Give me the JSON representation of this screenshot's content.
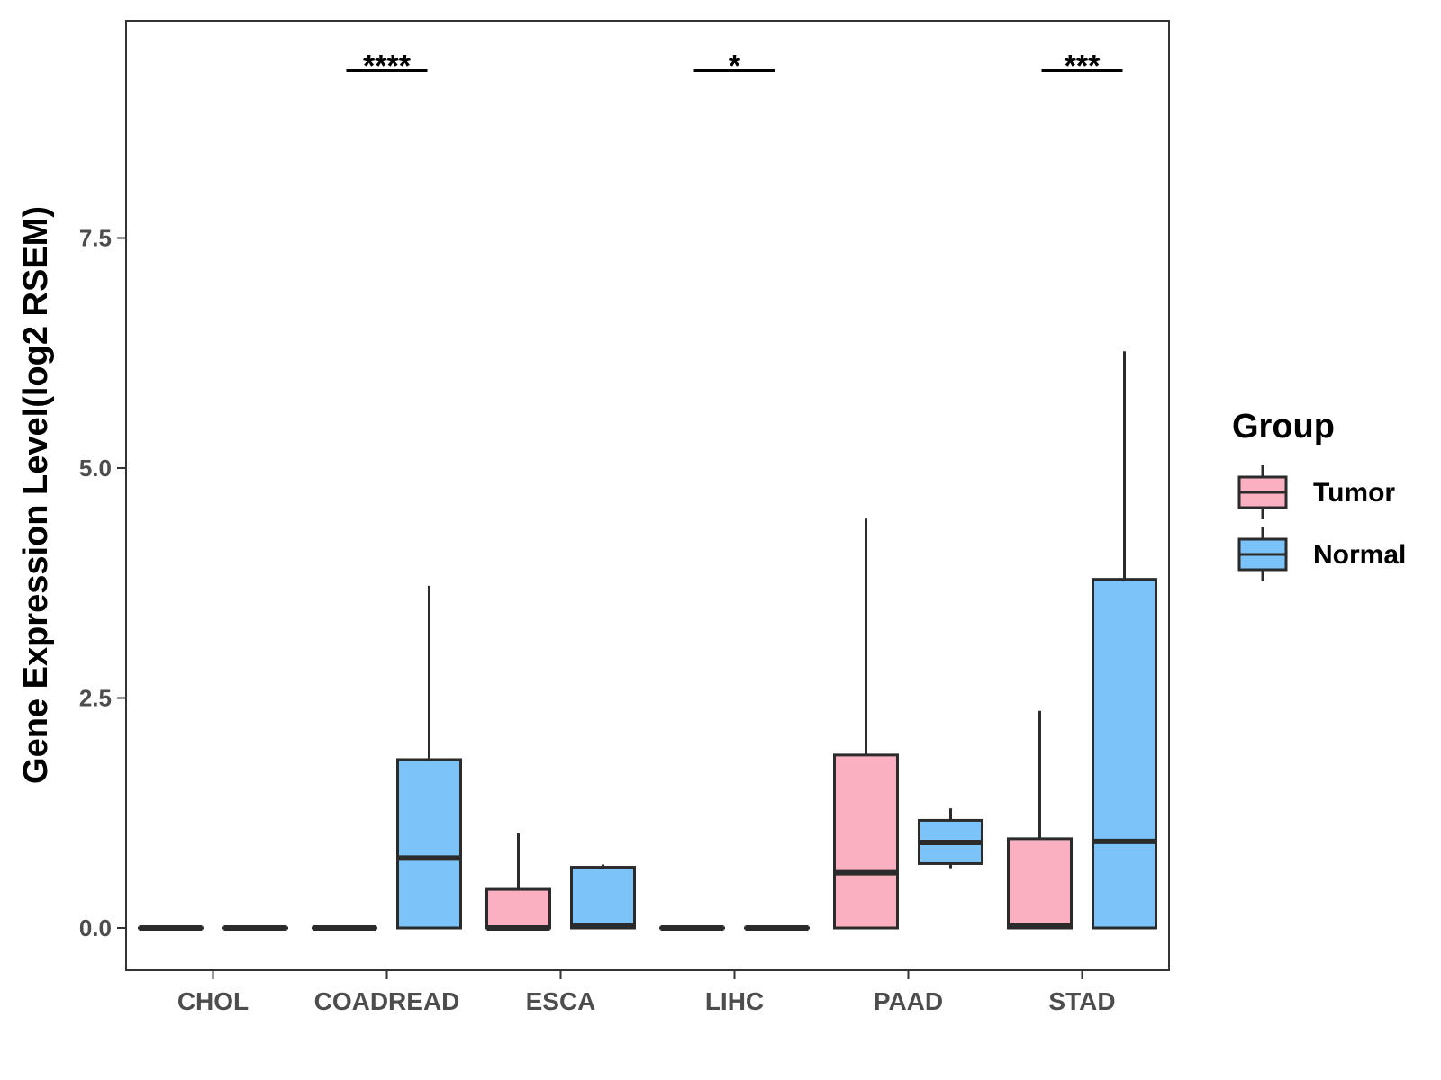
{
  "chart_data": {
    "type": "boxplot",
    "ylabel": "Gene Expression Level(log2 RSEM)",
    "xlabel": "",
    "ylim": [
      -0.45,
      9.85
    ],
    "yticks": [
      0.0,
      2.5,
      5.0,
      7.5
    ],
    "ytick_labels": [
      "0.0",
      "2.5",
      "5.0",
      "7.5"
    ],
    "categories": [
      "CHOL",
      "COADREAD",
      "ESCA",
      "LIHC",
      "PAAD",
      "STAD"
    ],
    "legend": {
      "title": "Group",
      "position": "right",
      "entries": [
        {
          "name": "Tumor",
          "color": "#FBB0C2"
        },
        {
          "name": "Normal",
          "color": "#7BC3F8"
        }
      ]
    },
    "series": [
      {
        "name": "Tumor",
        "color": "#FBB0C2",
        "boxes": [
          {
            "category": "CHOL",
            "min": 0.0,
            "q1": 0.0,
            "median": 0.0,
            "q3": 0.0,
            "max": 0.0
          },
          {
            "category": "COADREAD",
            "min": 0.0,
            "q1": 0.0,
            "median": 0.0,
            "q3": 0.0,
            "max": 0.0
          },
          {
            "category": "ESCA",
            "min": 0.0,
            "q1": 0.0,
            "median": 0.0,
            "q3": 0.42,
            "max": 1.03
          },
          {
            "category": "LIHC",
            "min": 0.0,
            "q1": 0.0,
            "median": 0.0,
            "q3": 0.0,
            "max": 0.0
          },
          {
            "category": "PAAD",
            "min": 0.0,
            "q1": 0.0,
            "median": 0.6,
            "q3": 1.88,
            "max": 4.45
          },
          {
            "category": "STAD",
            "min": 0.0,
            "q1": 0.0,
            "median": 0.02,
            "q3": 0.97,
            "max": 2.36
          }
        ]
      },
      {
        "name": "Normal",
        "color": "#7BC3F8",
        "boxes": [
          {
            "category": "CHOL",
            "min": 0.0,
            "q1": 0.0,
            "median": 0.0,
            "q3": 0.0,
            "max": 0.0
          },
          {
            "category": "COADREAD",
            "min": 0.0,
            "q1": 0.0,
            "median": 0.76,
            "q3": 1.83,
            "max": 3.72
          },
          {
            "category": "ESCA",
            "min": 0.0,
            "q1": 0.0,
            "median": 0.02,
            "q3": 0.66,
            "max": 0.69
          },
          {
            "category": "LIHC",
            "min": 0.0,
            "q1": 0.0,
            "median": 0.0,
            "q3": 0.0,
            "max": 0.0
          },
          {
            "category": "PAAD",
            "min": 0.65,
            "q1": 0.7,
            "median": 0.93,
            "q3": 1.17,
            "max": 1.3
          },
          {
            "category": "STAD",
            "min": 0.0,
            "q1": 0.0,
            "median": 0.94,
            "q3": 3.79,
            "max": 6.27
          }
        ]
      }
    ],
    "significance": [
      {
        "category": "COADREAD",
        "label": "****",
        "y": 9.32
      },
      {
        "category": "LIHC",
        "label": "*",
        "y": 9.32
      },
      {
        "category": "STAD",
        "label": "***",
        "y": 9.32
      }
    ]
  }
}
